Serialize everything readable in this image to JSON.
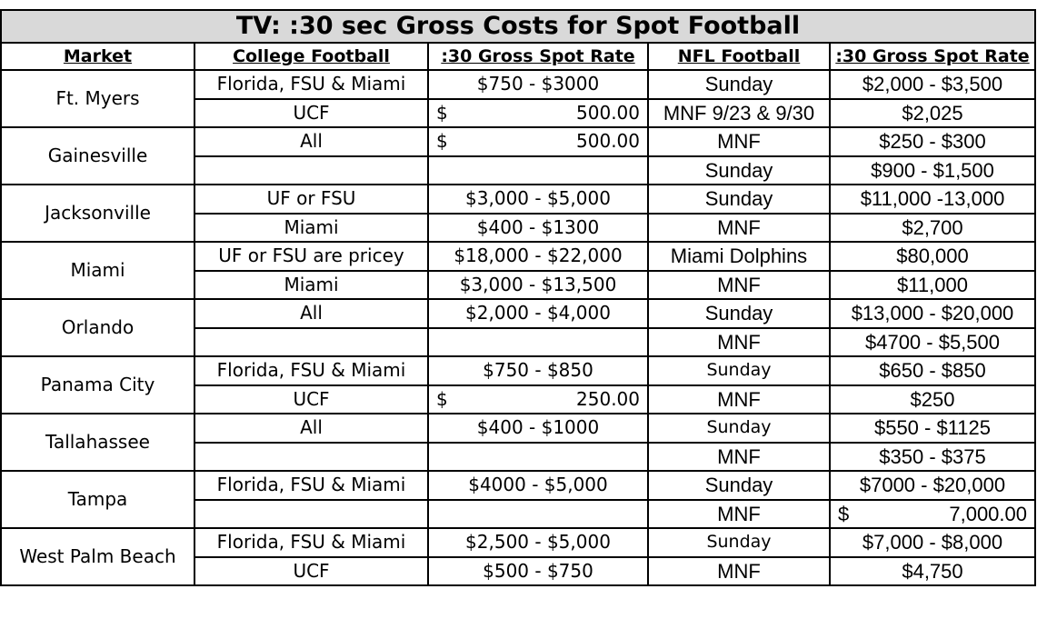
{
  "title": "TV:  :30 sec Gross Costs for Spot Football",
  "headers": [
    "Market",
    "College Football",
    ":30 Gross Spot Rate",
    "NFL Football",
    ":30 Gross Spot Rate"
  ],
  "markets": [
    {
      "name": "Ft. Myers",
      "rows": [
        {
          "college": "Florida, FSU & Miami",
          "college_rate": "$750 - $3000",
          "nfl": "Sunday",
          "nfl_rate": "$2,000 - $3,500"
        },
        {
          "college": "UCF",
          "college_rate_sym": "$",
          "college_rate_amt": "500.00",
          "nfl": "MNF 9/23 & 9/30",
          "nfl_rate": "$2,025"
        }
      ]
    },
    {
      "name": "Gainesville",
      "rows": [
        {
          "college": "All",
          "college_rate_sym": "$",
          "college_rate_amt": "500.00",
          "nfl": "MNF",
          "nfl_rate": "$250 - $300"
        },
        {
          "college": "",
          "college_rate": "",
          "nfl": "Sunday",
          "nfl_rate": "$900 - $1,500"
        }
      ]
    },
    {
      "name": "Jacksonville",
      "rows": [
        {
          "college": "UF or FSU",
          "college_rate": "$3,000 - $5,000",
          "nfl": "Sunday",
          "nfl_rate": "$11,000 -13,000"
        },
        {
          "college": "Miami",
          "college_rate": "$400 - $1300",
          "nfl": "MNF",
          "nfl_rate": "$2,700"
        }
      ]
    },
    {
      "name": "Miami",
      "rows": [
        {
          "college": "UF or FSU are pricey",
          "college_rate": "$18,000 - $22,000",
          "nfl": "Miami Dolphins",
          "nfl_rate": "$80,000"
        },
        {
          "college": "Miami",
          "college_rate": "$3,000 - $13,500",
          "nfl": "MNF",
          "nfl_rate": "$11,000"
        }
      ]
    },
    {
      "name": "Orlando",
      "rows": [
        {
          "college": "All",
          "college_rate": "$2,000 - $4,000",
          "nfl": "Sunday",
          "nfl_rate": "$13,000 - $20,000"
        },
        {
          "college": "",
          "college_rate": "",
          "nfl": "MNF",
          "nfl_rate": "$4700 - $5,500"
        }
      ]
    },
    {
      "name": "Panama City",
      "rows": [
        {
          "college": "Florida, FSU & Miami",
          "college_rate": "$750 - $850",
          "nfl": "Sunday",
          "nfl_rate": "$650 - $850"
        },
        {
          "college": "UCF",
          "college_rate_sym": "$",
          "college_rate_amt": "250.00",
          "nfl": "MNF",
          "nfl_rate": "$250"
        }
      ]
    },
    {
      "name": "Tallahassee",
      "rows": [
        {
          "college": "All",
          "college_rate": "$400 - $1000",
          "nfl": "Sunday",
          "nfl_rate": "$550 - $1125"
        },
        {
          "college": "",
          "college_rate": "",
          "nfl": "MNF",
          "nfl_rate": "$350 - $375"
        }
      ]
    },
    {
      "name": "Tampa",
      "rows": [
        {
          "college": "Florida, FSU & Miami",
          "college_rate": "$4000 - $5,000",
          "nfl": "Sunday",
          "nfl_rate": "$7000 - $20,000"
        },
        {
          "college": "",
          "college_rate": "",
          "nfl": "MNF",
          "nfl_rate_sym": "$",
          "nfl_rate_amt": "7,000.00"
        }
      ]
    },
    {
      "name": "West Palm Beach",
      "rows": [
        {
          "college": "Florida, FSU & Miami",
          "college_rate": "$2,500 - $5,000",
          "nfl": "Sunday",
          "nfl_rate": "$7,000 - $8,000"
        },
        {
          "college": "UCF",
          "college_rate": "$500 - $750",
          "nfl": "MNF",
          "nfl_rate": "$4,750"
        }
      ]
    }
  ]
}
